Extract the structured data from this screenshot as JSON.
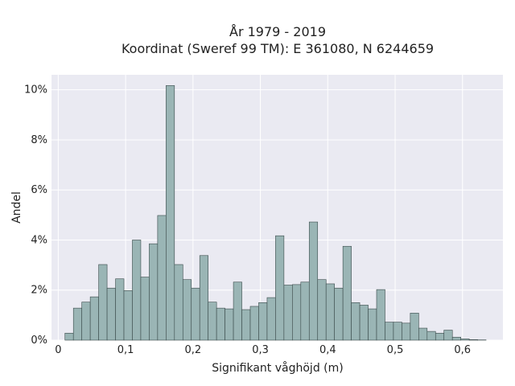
{
  "chart_data": {
    "type": "bar",
    "title": "År 1979 - 2019",
    "subtitle": "Koordinat (Sweref 99 TM): E 361080, N 6244659",
    "xlabel": "Signifikant våghöjd (m)",
    "ylabel": "Andel",
    "xlim": [
      -0.01,
      0.66
    ],
    "ylim": [
      0,
      10.6
    ],
    "x_ticks": [
      0,
      0.1,
      0.2,
      0.3,
      0.4,
      0.5,
      0.6
    ],
    "x_tick_labels": [
      "0",
      "0,1",
      "0,2",
      "0,3",
      "0,4",
      "0,5",
      "0,6"
    ],
    "y_ticks": [
      0,
      2,
      4,
      6,
      8,
      10
    ],
    "y_tick_labels": [
      "0%",
      "2%",
      "4%",
      "6%",
      "8%",
      "10%"
    ],
    "bin_width": 0.0125,
    "bin_start": 0.01,
    "values": [
      0.28,
      1.28,
      1.52,
      1.73,
      3.02,
      2.08,
      2.45,
      1.98,
      4.0,
      2.52,
      3.85,
      4.98,
      10.17,
      3.02,
      2.42,
      2.08,
      3.38,
      1.52,
      1.28,
      1.25,
      2.32,
      1.22,
      1.35,
      1.5,
      1.7,
      4.17,
      2.2,
      2.22,
      2.32,
      4.72,
      2.42,
      2.25,
      2.08,
      3.75,
      1.5,
      1.4,
      1.25,
      2.02,
      0.72,
      0.72,
      0.68,
      1.08,
      0.48,
      0.35,
      0.28,
      0.4,
      0.12,
      0.05,
      0.02,
      0.01
    ],
    "bar_color": "#9ab5b5",
    "bar_edge_color": "#3a4a4a",
    "background_color": "#eaeaf2",
    "grid": true
  }
}
